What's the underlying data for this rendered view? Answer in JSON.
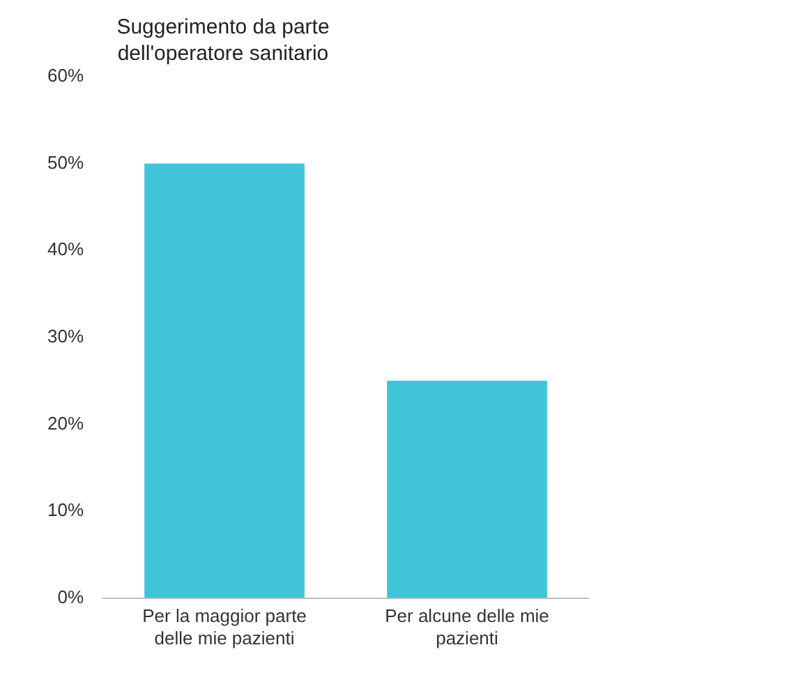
{
  "chart_data": {
    "type": "bar",
    "title": "Suggerimento da parte dell'operatore sanitario",
    "categories": [
      "Per la maggior parte delle mie pazienti",
      "Per alcune delle mie pazienti"
    ],
    "values": [
      50,
      25
    ],
    "color": "#40c4d8",
    "ylim": [
      0,
      60
    ],
    "yticks": [
      {
        "value": 0,
        "label": "0%"
      },
      {
        "value": 10,
        "label": "10%"
      },
      {
        "value": 20,
        "label": "20%"
      },
      {
        "value": 30,
        "label": "30%"
      },
      {
        "value": 40,
        "label": "40%"
      },
      {
        "value": 50,
        "label": "50%"
      },
      {
        "value": 60,
        "label": "60%"
      }
    ],
    "grid": false,
    "legend": false
  }
}
